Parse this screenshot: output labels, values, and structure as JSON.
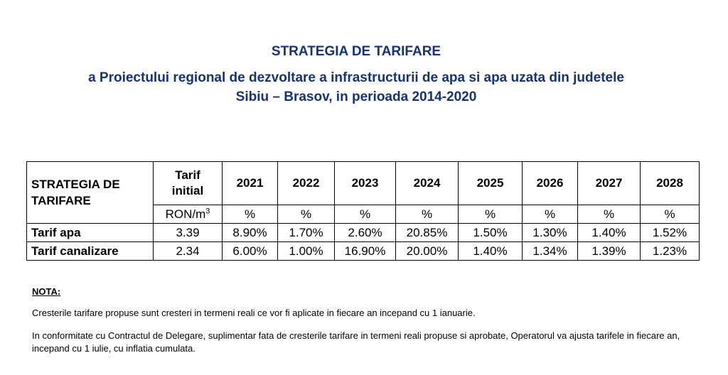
{
  "document": {
    "title": "STRATEGIA DE TARIFARE",
    "subtitle_line1": "a Proiectului regional de dezvoltare a infrastructurii de apa si apa uzata din judetele",
    "subtitle_line2": "Sibiu – Brasov, in perioada 2014-2020"
  },
  "table": {
    "header_title_line1": "STRATEGIA DE",
    "header_title_line2": "TARIFARE",
    "initial_line1": "Tarif",
    "initial_line2": "initial",
    "years": [
      "2021",
      "2022",
      "2023",
      "2024",
      "2025",
      "2026",
      "2027",
      "2028"
    ],
    "unit_initial": "RON/m",
    "unit_initial_sup": "3",
    "unit_year": "%",
    "rows": [
      {
        "label": "Tarif apa",
        "initial": "3.39",
        "values": [
          "8.90%",
          "1.70%",
          "2.60%",
          "20.85%",
          "1.50%",
          "1.30%",
          "1.40%",
          "1.52%"
        ]
      },
      {
        "label": "Tarif canalizare",
        "initial": "2.34",
        "values": [
          "6.00%",
          "1.00%",
          "16.90%",
          "20.00%",
          "1.40%",
          "1.34%",
          "1.39%",
          "1.23%"
        ]
      }
    ]
  },
  "nota": {
    "heading": "NOTA:",
    "p1": "Cresterile tarifare propuse sunt cresteri in termeni reali ce vor fi aplicate in fiecare an incepand cu 1 ianuarie.",
    "p2": "In conformitate cu Contractul de Delegare, suplimentar fata de cresterile tarifare in termeni reali propuse si aprobate, Operatorul va ajusta tarifele in fiecare an, incepand cu 1 iulie, cu inflatia cumulata."
  },
  "colors": {
    "title": "#14337c",
    "text": "#000000",
    "border": "#000000"
  }
}
